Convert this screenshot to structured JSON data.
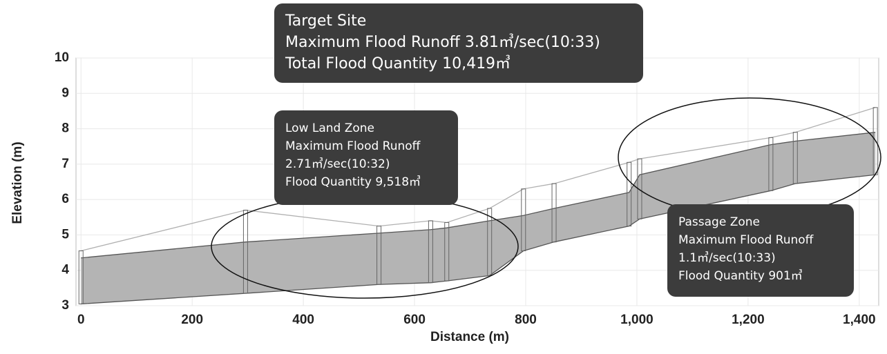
{
  "chart_data": {
    "type": "profile",
    "xlabel": "Distance (m)",
    "ylabel": "Elevation (m)",
    "x": [
      0,
      296,
      536,
      629,
      658,
      735,
      796,
      851,
      986,
      1005,
      1241,
      1285,
      1429
    ],
    "series": [
      {
        "color": "#555555",
        "values": [
          3.05,
          3.35,
          3.6,
          3.65,
          3.7,
          3.85,
          4.55,
          4.8,
          5.25,
          5.45,
          6.25,
          6.45,
          6.7
        ]
      },
      {
        "color": "#555555",
        "values": [
          4.35,
          4.8,
          5.05,
          5.15,
          5.2,
          5.4,
          5.55,
          5.75,
          6.2,
          6.7,
          7.55,
          7.65,
          7.9
        ]
      },
      {
        "color": "#b0b0b0",
        "values": [
          4.55,
          5.7,
          5.25,
          5.4,
          5.35,
          5.75,
          6.3,
          6.45,
          7.05,
          7.15,
          7.75,
          7.9,
          8.6
        ]
      }
    ],
    "fill_color": "#b4b4b4",
    "xlim": [
      -9,
      1435
    ],
    "ylim": [
      3,
      10
    ],
    "xticks": [
      0,
      200,
      400,
      600,
      800,
      {
        "value": 1000,
        "label": "1,000"
      },
      {
        "value": 1200,
        "label": "1,200"
      },
      {
        "value": 1400,
        "label": "1,400"
      }
    ],
    "yticks": [
      3,
      4,
      5,
      6,
      7,
      8,
      9,
      10
    ],
    "grid": true,
    "annotations": [
      {
        "lines": [
          "Target Site",
          "Maximum Flood  Runoff 3.81㎥/sec(10:33)",
          "Total Flood  Quantity 10,419㎥"
        ]
      },
      {
        "lines": [
          "Low Land Zone",
          "Maximum Flood Runoff",
          "2.71㎥/sec(10:32)",
          "Flood Quantity 9,518㎥"
        ]
      },
      {
        "lines": [
          "Passage Zone",
          "Maximum Flood Runoff",
          "1.1㎥/sec(10:33)",
          "Flood Quantity 901㎥"
        ]
      }
    ]
  }
}
